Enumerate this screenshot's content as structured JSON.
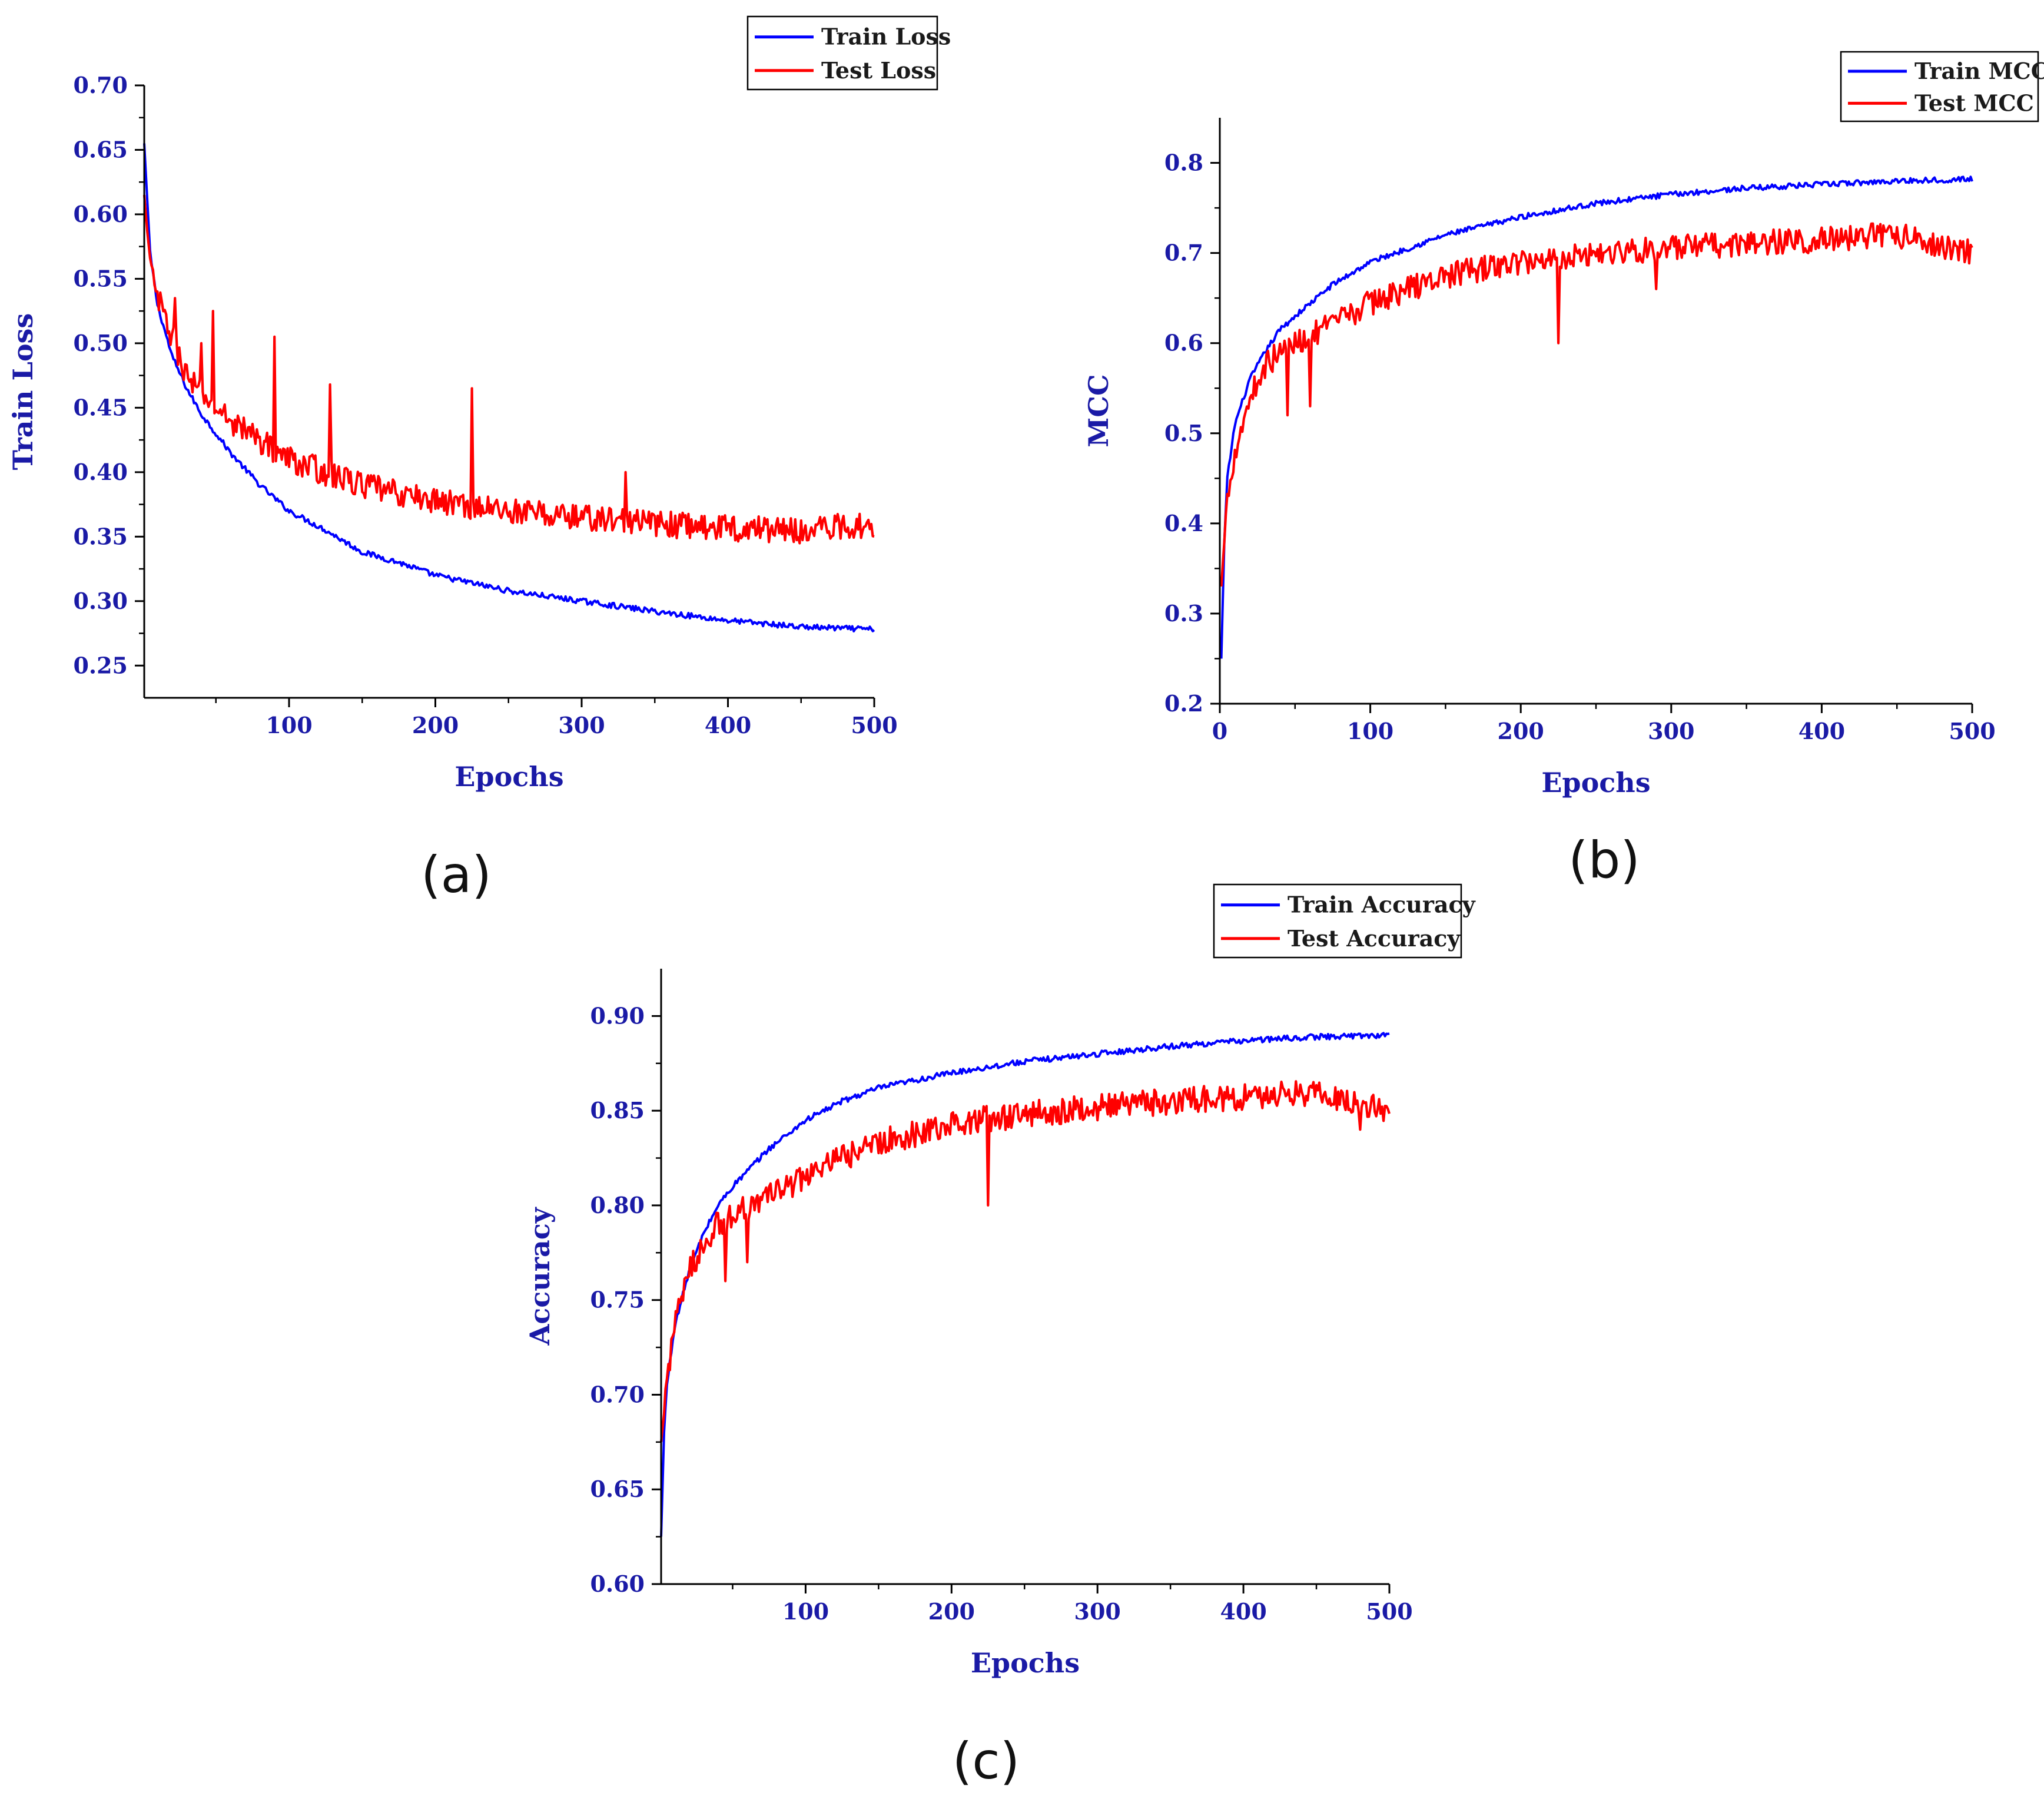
{
  "colors": {
    "train": "#0000ff",
    "test": "#ff0000",
    "axis_text": "#1a1aa6"
  },
  "chart_data": [
    {
      "id": "a",
      "type": "line",
      "panel_label": "(a)",
      "title": "",
      "xlabel": "Epochs",
      "ylabel": "Train Loss",
      "xlim": [
        1,
        500
      ],
      "ylim": [
        0.225,
        0.7
      ],
      "xticks": [
        100,
        200,
        300,
        400,
        500
      ],
      "xtick_labels": [
        "100",
        "200",
        "300",
        "400",
        "500"
      ],
      "yticks": [
        0.25,
        0.3,
        0.35,
        0.4,
        0.45,
        0.5,
        0.55,
        0.6,
        0.65,
        0.7
      ],
      "ytick_labels": [
        "0.25",
        "0.30",
        "0.35",
        "0.40",
        "0.45",
        "0.50",
        "0.55",
        "0.60",
        "0.65",
        "0.70"
      ],
      "legend_position": "top-right",
      "series": [
        {
          "name": "Train Loss",
          "color": "#0000ff",
          "x": [
            1,
            5,
            10,
            20,
            30,
            40,
            50,
            60,
            80,
            100,
            125,
            150,
            175,
            200,
            250,
            300,
            350,
            400,
            450,
            500
          ],
          "values": [
            0.655,
            0.57,
            0.53,
            0.49,
            0.465,
            0.445,
            0.43,
            0.415,
            0.39,
            0.37,
            0.355,
            0.338,
            0.33,
            0.32,
            0.308,
            0.3,
            0.292,
            0.285,
            0.28,
            0.278
          ]
        },
        {
          "name": "Test Loss",
          "color": "#ff0000",
          "x": [
            1,
            5,
            10,
            20,
            30,
            40,
            50,
            60,
            80,
            100,
            125,
            150,
            175,
            200,
            250,
            300,
            350,
            400,
            450,
            500
          ],
          "values": [
            0.615,
            0.56,
            0.535,
            0.505,
            0.475,
            0.46,
            0.45,
            0.44,
            0.425,
            0.41,
            0.4,
            0.39,
            0.383,
            0.378,
            0.37,
            0.365,
            0.36,
            0.357,
            0.355,
            0.36
          ],
          "spikes_x": [
            22,
            40,
            48,
            90,
            128,
            225,
            330
          ],
          "spikes_y": [
            0.535,
            0.5,
            0.525,
            0.505,
            0.468,
            0.465,
            0.4
          ]
        }
      ]
    },
    {
      "id": "b",
      "type": "line",
      "panel_label": "(b)",
      "title": "",
      "xlabel": "Epochs",
      "ylabel": "MCC",
      "xlim": [
        0,
        500
      ],
      "ylim": [
        0.2,
        0.85
      ],
      "xticks": [
        0,
        100,
        200,
        300,
        400,
        500
      ],
      "xtick_labels": [
        "0",
        "100",
        "200",
        "300",
        "400",
        "500"
      ],
      "yticks": [
        0.2,
        0.3,
        0.4,
        0.5,
        0.6,
        0.7,
        0.8
      ],
      "ytick_labels": [
        "0.2",
        "0.3",
        "0.4",
        "0.5",
        "0.6",
        "0.7",
        "0.8"
      ],
      "legend_position": "top-right",
      "series": [
        {
          "name": "Train MCC",
          "color": "#0000ff",
          "x": [
            1,
            3,
            5,
            10,
            20,
            30,
            40,
            50,
            75,
            100,
            125,
            150,
            200,
            250,
            300,
            350,
            400,
            450,
            500
          ],
          "values": [
            0.25,
            0.38,
            0.45,
            0.51,
            0.56,
            0.59,
            0.615,
            0.63,
            0.665,
            0.69,
            0.705,
            0.72,
            0.74,
            0.755,
            0.765,
            0.772,
            0.776,
            0.78,
            0.782
          ]
        },
        {
          "name": "Test MCC",
          "color": "#ff0000",
          "x": [
            1,
            3,
            5,
            10,
            20,
            30,
            40,
            50,
            75,
            100,
            125,
            150,
            200,
            250,
            300,
            350,
            400,
            450,
            500
          ],
          "values": [
            0.33,
            0.38,
            0.43,
            0.48,
            0.54,
            0.575,
            0.59,
            0.6,
            0.62,
            0.645,
            0.66,
            0.675,
            0.69,
            0.7,
            0.705,
            0.71,
            0.715,
            0.72,
            0.7
          ],
          "spikes_x": [
            45,
            60,
            225,
            290
          ],
          "spikes_y": [
            0.52,
            0.53,
            0.6,
            0.66
          ]
        }
      ]
    },
    {
      "id": "c",
      "type": "line",
      "panel_label": "(c)",
      "title": "",
      "xlabel": "Epochs",
      "ylabel": "Accuracy",
      "xlim": [
        1,
        500
      ],
      "ylim": [
        0.6,
        0.925
      ],
      "xticks": [
        100,
        200,
        300,
        400,
        500
      ],
      "xtick_labels": [
        "100",
        "200",
        "300",
        "400",
        "500"
      ],
      "yticks": [
        0.6,
        0.65,
        0.7,
        0.75,
        0.8,
        0.85,
        0.9
      ],
      "ytick_labels": [
        "0.60",
        "0.65",
        "0.70",
        "0.75",
        "0.80",
        "0.85",
        "0.90"
      ],
      "legend_position": "top-right",
      "series": [
        {
          "name": "Train Accuracy",
          "color": "#0000ff",
          "x": [
            1,
            3,
            5,
            10,
            20,
            30,
            40,
            50,
            75,
            100,
            125,
            150,
            200,
            250,
            300,
            350,
            400,
            450,
            500
          ],
          "values": [
            0.625,
            0.68,
            0.705,
            0.735,
            0.765,
            0.785,
            0.8,
            0.81,
            0.83,
            0.845,
            0.855,
            0.862,
            0.87,
            0.876,
            0.88,
            0.884,
            0.887,
            0.889,
            0.89
          ]
        },
        {
          "name": "Test  Accuracy",
          "color": "#ff0000",
          "x": [
            1,
            3,
            5,
            10,
            20,
            30,
            40,
            50,
            75,
            100,
            125,
            150,
            200,
            250,
            300,
            350,
            400,
            450,
            500
          ],
          "values": [
            0.675,
            0.69,
            0.71,
            0.735,
            0.765,
            0.78,
            0.79,
            0.795,
            0.805,
            0.815,
            0.825,
            0.833,
            0.843,
            0.848,
            0.852,
            0.855,
            0.857,
            0.86,
            0.85
          ],
          "spikes_x": [
            45,
            60,
            225,
            480
          ],
          "spikes_y": [
            0.76,
            0.77,
            0.8,
            0.84
          ]
        }
      ]
    }
  ]
}
